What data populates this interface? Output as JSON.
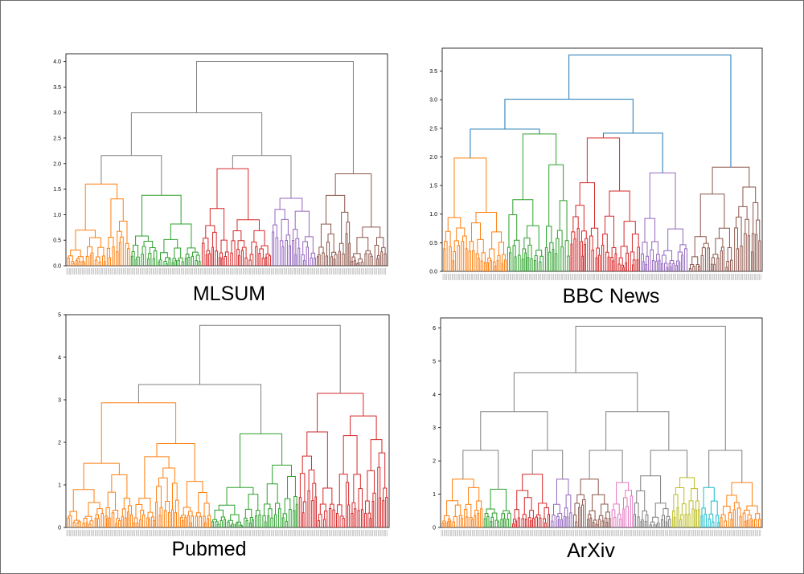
{
  "chart_data": [
    {
      "type": "dendrogram",
      "title": "MLSUM",
      "yticks": [
        "0.0",
        "0.5",
        "1.0",
        "1.5",
        "2.0",
        "2.5",
        "3.0",
        "3.5",
        "4.0"
      ],
      "ylim": [
        0,
        4.15
      ],
      "root_height": 4.0,
      "clusters": [
        {
          "color": "#ff7f0e",
          "fraction": 0.2,
          "height": 1.6
        },
        {
          "color": "#2ca02c",
          "fraction": 0.22,
          "height": 1.38
        },
        {
          "color": "#d62728",
          "fraction": 0.22,
          "height": 1.9
        },
        {
          "color": "#9467bd",
          "fraction": 0.14,
          "height": 1.32
        },
        {
          "color": "#8c564b",
          "fraction": 0.22,
          "height": 1.8
        }
      ],
      "links": [
        {
          "left": 0,
          "right": 1,
          "height": 3.38
        },
        {
          "left": 3,
          "right": 4,
          "height": 1.98
        },
        {
          "left": 2,
          "right": 3,
          "height": 2.9
        },
        {
          "left": 1,
          "right": 2,
          "height": 3.38
        }
      ],
      "link_color": "#808080"
    },
    {
      "type": "dendrogram",
      "title": "BBC News",
      "yticks": [
        "0.0",
        "0.5",
        "1.0",
        "1.5",
        "2.0",
        "2.5",
        "3.0",
        "3.5"
      ],
      "ylim": [
        0,
        3.9
      ],
      "root_height": 3.78,
      "clusters": [
        {
          "color": "#ff7f0e",
          "fraction": 0.2,
          "height": 1.98
        },
        {
          "color": "#2ca02c",
          "fraction": 0.2,
          "height": 2.4
        },
        {
          "color": "#d62728",
          "fraction": 0.22,
          "height": 2.33
        },
        {
          "color": "#9467bd",
          "fraction": 0.15,
          "height": 1.72
        },
        {
          "color": "#8c564b",
          "fraction": 0.23,
          "height": 1.82
        }
      ],
      "link_color": "#1f77b4"
    },
    {
      "type": "dendrogram",
      "title": "Pubmed",
      "yticks": [
        "0",
        "1",
        "2",
        "3",
        "4",
        "5"
      ],
      "ylim": [
        0,
        5
      ],
      "root_height": 4.75,
      "clusters": [
        {
          "color": "#ff7f0e",
          "fraction": 0.45,
          "height": 2.93
        },
        {
          "color": "#2ca02c",
          "fraction": 0.27,
          "height": 2.2
        },
        {
          "color": "#d62728",
          "fraction": 0.28,
          "height": 3.15
        }
      ],
      "link_color": "#808080"
    },
    {
      "type": "dendrogram",
      "title": "ArXiv",
      "yticks": [
        "0",
        "1",
        "2",
        "3",
        "4",
        "5",
        "6"
      ],
      "ylim": [
        0,
        6.3
      ],
      "root_height": 6.05,
      "clusters": [
        {
          "color": "#ff7f0e",
          "fraction": 0.13,
          "height": 1.45
        },
        {
          "color": "#2ca02c",
          "fraction": 0.09,
          "height": 1.15
        },
        {
          "color": "#d62728",
          "fraction": 0.12,
          "height": 1.6
        },
        {
          "color": "#9467bd",
          "fraction": 0.07,
          "height": 1.45
        },
        {
          "color": "#8c564b",
          "fraction": 0.12,
          "height": 1.45
        },
        {
          "color": "#e377c2",
          "fraction": 0.07,
          "height": 1.35
        },
        {
          "color": "#7f7f7f",
          "fraction": 0.12,
          "height": 1.55
        },
        {
          "color": "#bcbd22",
          "fraction": 0.09,
          "height": 1.5
        },
        {
          "color": "#17becf",
          "fraction": 0.06,
          "height": 1.2
        },
        {
          "color": "#ff7f0e",
          "fraction": 0.13,
          "height": 1.35
        }
      ],
      "link_color": "#808080"
    }
  ]
}
